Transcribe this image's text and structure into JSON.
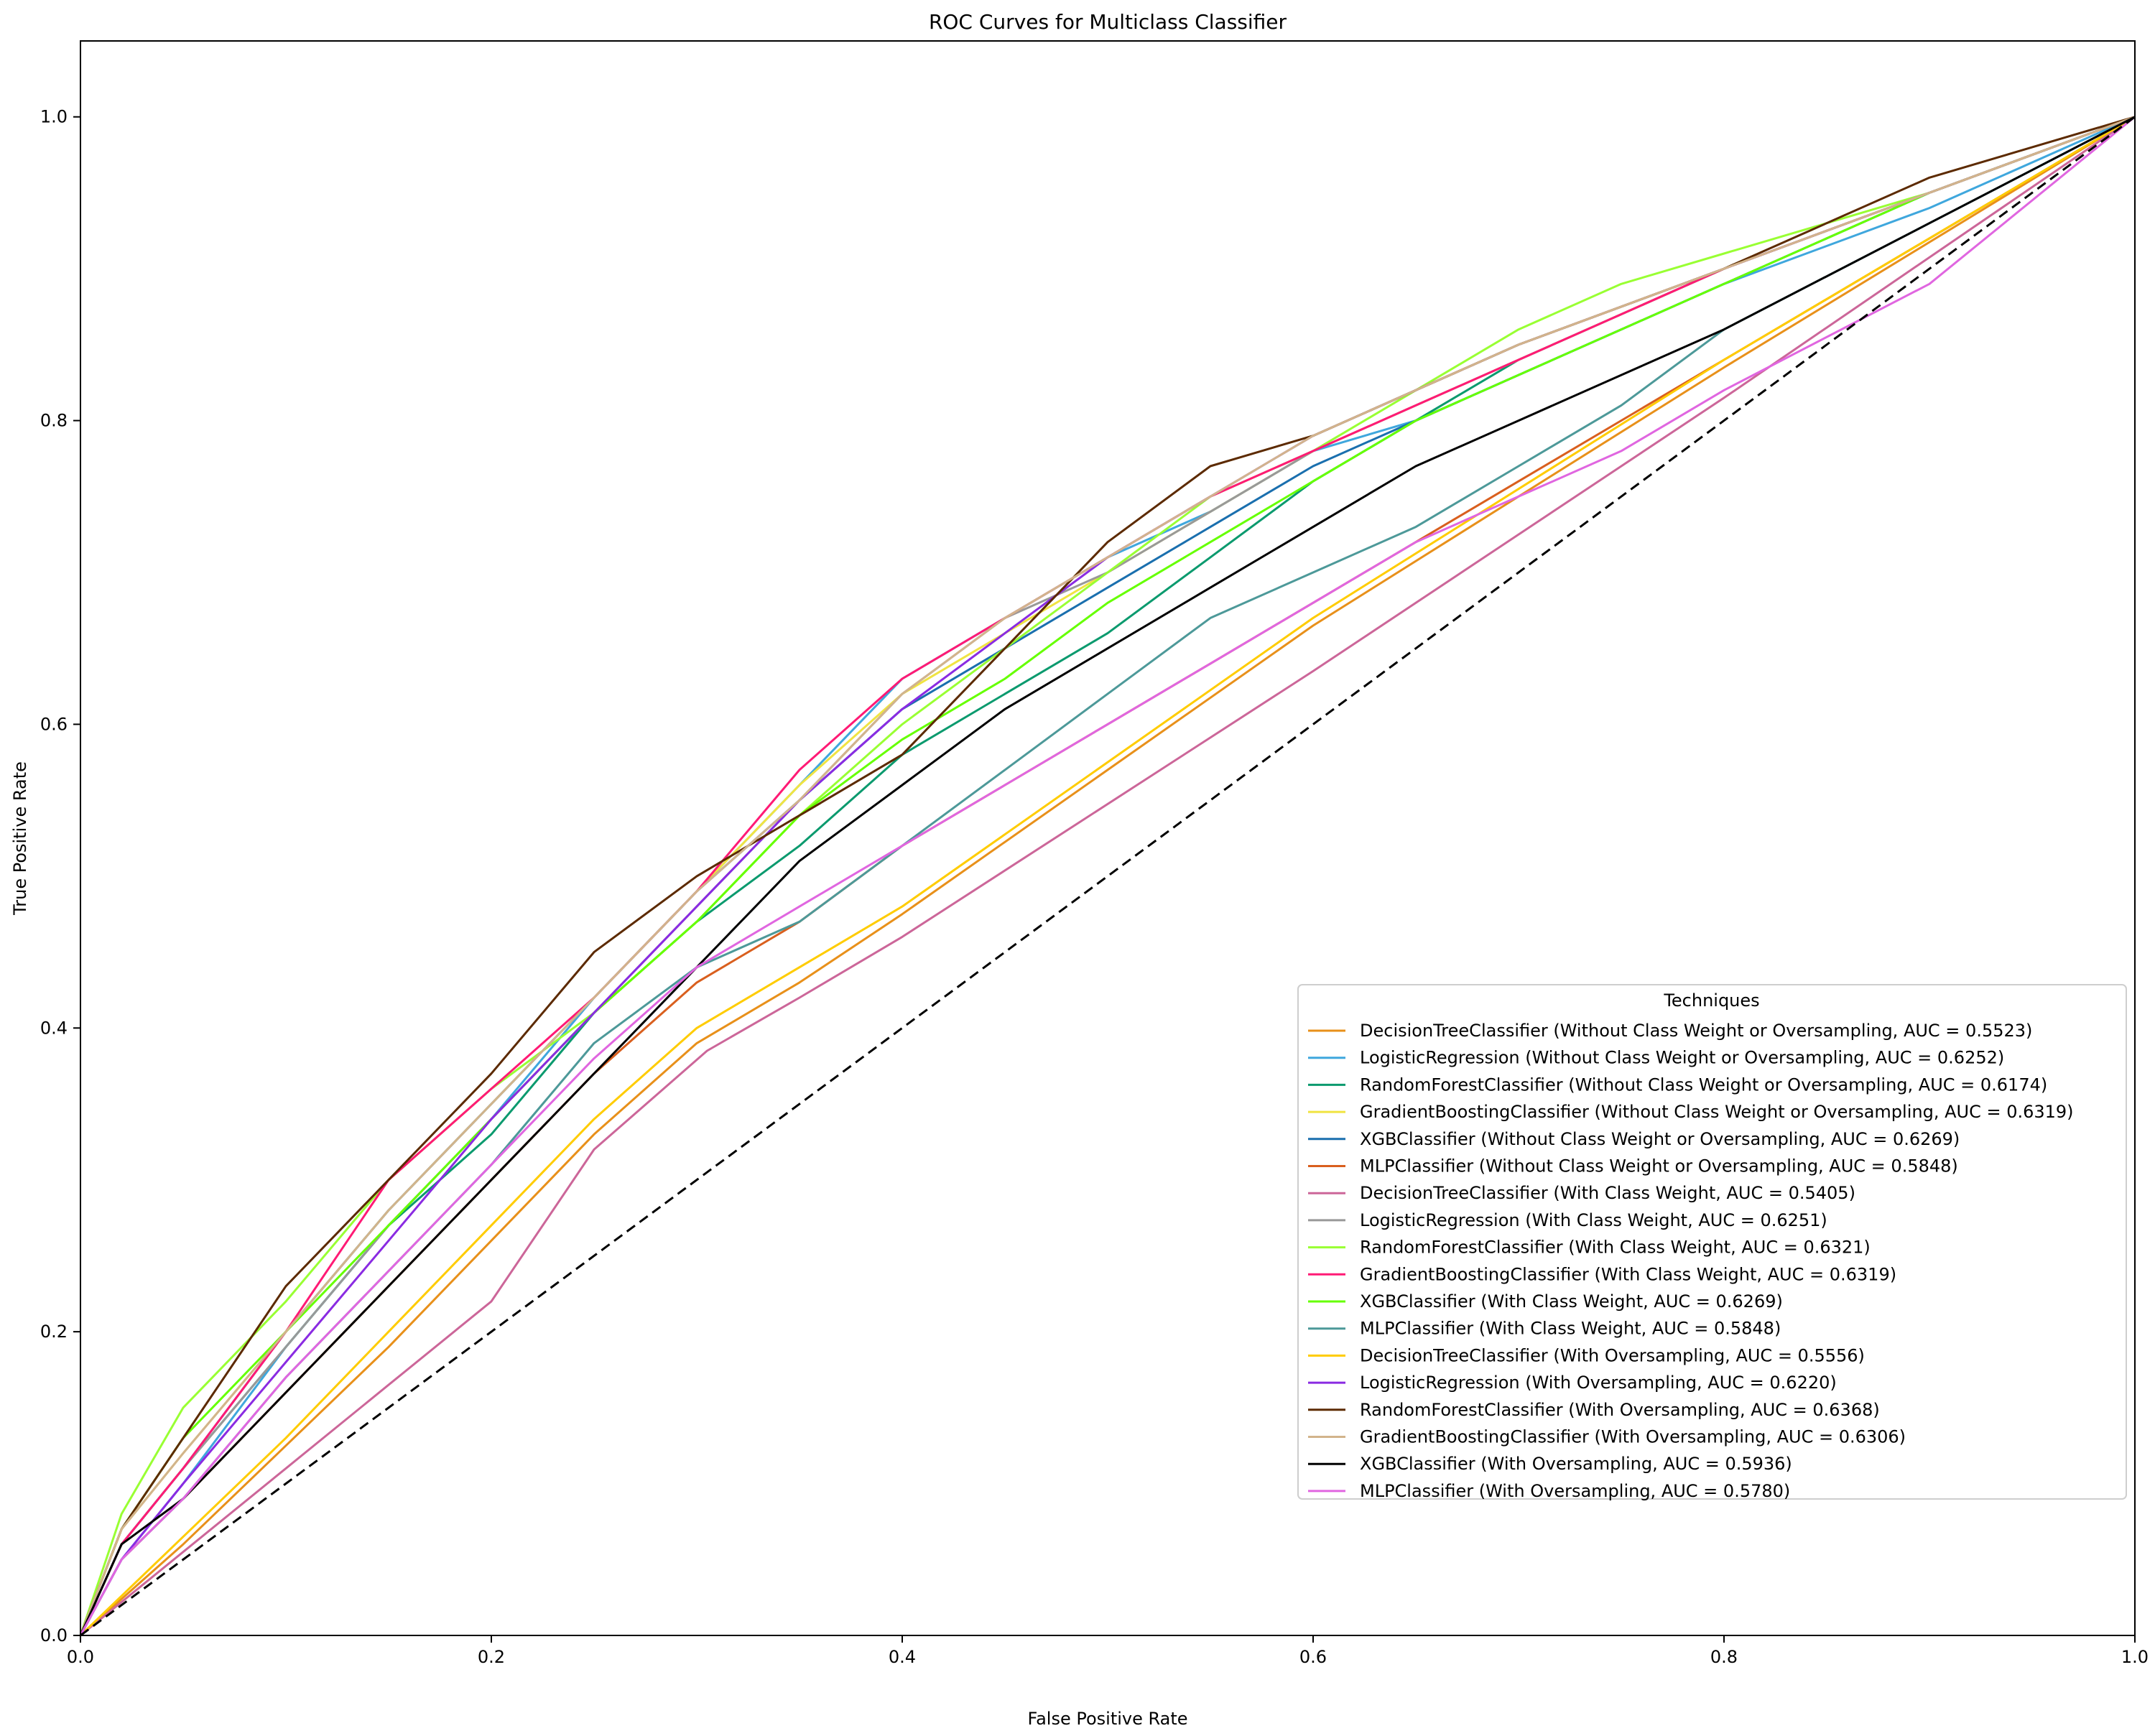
{
  "chart_data": {
    "type": "line",
    "title": "ROC Curves for Multiclass Classifier",
    "xlabel": "False Positive Rate",
    "ylabel": "True Positive Rate",
    "xlim": [
      0.0,
      1.0
    ],
    "ylim": [
      0.0,
      1.05
    ],
    "xticks": [
      "0.0",
      "0.2",
      "0.4",
      "0.6",
      "0.8",
      "1.0"
    ],
    "yticks": [
      "0.0",
      "0.2",
      "0.4",
      "0.6",
      "0.8",
      "1.0"
    ],
    "grid": false,
    "legend": {
      "title": "Techniques",
      "placement": "lower right"
    },
    "series": [
      {
        "name": "DecisionTreeClassifier (Without Class Weight or Oversampling, AUC = 0.5523)",
        "color": "#e8901a",
        "style": "solid",
        "x": [
          0,
          0.05,
          0.1,
          0.15,
          0.2,
          0.25,
          0.3,
          0.35,
          0.4,
          0.6,
          0.8,
          1.0
        ],
        "y": [
          0,
          0.06,
          0.125,
          0.19,
          0.26,
          0.33,
          0.39,
          0.43,
          0.475,
          0.665,
          0.835,
          1.0
        ]
      },
      {
        "name": "LogisticRegression (Without Class Weight or Oversampling, AUC = 0.6252)",
        "color": "#3fa7dd",
        "style": "solid",
        "x": [
          0,
          0.02,
          0.05,
          0.1,
          0.15,
          0.2,
          0.25,
          0.3,
          0.35,
          0.4,
          0.45,
          0.5,
          0.55,
          0.6,
          0.65,
          0.7,
          0.75,
          0.8,
          0.9,
          1.0
        ],
        "y": [
          0,
          0.05,
          0.1,
          0.19,
          0.27,
          0.34,
          0.42,
          0.49,
          0.56,
          0.63,
          0.67,
          0.71,
          0.74,
          0.78,
          0.8,
          0.83,
          0.86,
          0.89,
          0.94,
          1.0
        ]
      },
      {
        "name": "RandomForestClassifier (Without Class Weight or Oversampling, AUC = 0.6174)",
        "color": "#0b9a6e",
        "style": "solid",
        "x": [
          0,
          0.02,
          0.05,
          0.1,
          0.15,
          0.2,
          0.25,
          0.3,
          0.35,
          0.4,
          0.45,
          0.5,
          0.55,
          0.6,
          0.65,
          0.7,
          0.8,
          0.9,
          1.0
        ],
        "y": [
          0,
          0.06,
          0.11,
          0.19,
          0.27,
          0.33,
          0.41,
          0.47,
          0.52,
          0.58,
          0.62,
          0.66,
          0.71,
          0.76,
          0.8,
          0.84,
          0.9,
          0.95,
          1.0
        ]
      },
      {
        "name": "GradientBoostingClassifier (Without Class Weight or Oversampling, AUC = 0.6319)",
        "color": "#f0e442",
        "style": "solid",
        "x": [
          0,
          0.02,
          0.05,
          0.1,
          0.15,
          0.2,
          0.25,
          0.3,
          0.35,
          0.4,
          0.45,
          0.5,
          0.55,
          0.6,
          0.65,
          0.7,
          0.8,
          0.9,
          1.0
        ],
        "y": [
          0,
          0.07,
          0.12,
          0.2,
          0.28,
          0.35,
          0.42,
          0.49,
          0.56,
          0.62,
          0.66,
          0.7,
          0.74,
          0.78,
          0.81,
          0.84,
          0.9,
          0.95,
          1.0
        ]
      },
      {
        "name": "XGBClassifier (Without Class Weight or Oversampling, AUC = 0.6269)",
        "color": "#1a6fae",
        "style": "solid",
        "x": [
          0,
          0.02,
          0.05,
          0.1,
          0.15,
          0.2,
          0.25,
          0.3,
          0.35,
          0.4,
          0.45,
          0.5,
          0.55,
          0.6,
          0.65,
          0.7,
          0.8,
          0.9,
          1.0
        ],
        "y": [
          0,
          0.06,
          0.11,
          0.2,
          0.28,
          0.35,
          0.42,
          0.49,
          0.55,
          0.61,
          0.65,
          0.69,
          0.73,
          0.77,
          0.8,
          0.83,
          0.89,
          0.95,
          1.0
        ]
      },
      {
        "name": "MLPClassifier (Without Class Weight or Oversampling, AUC = 0.5848)",
        "color": "#d95f1e",
        "style": "solid",
        "x": [
          0,
          0.02,
          0.05,
          0.1,
          0.15,
          0.2,
          0.25,
          0.3,
          0.35,
          0.4,
          0.45,
          0.5,
          0.55,
          0.6,
          0.65,
          0.7,
          0.8,
          0.9,
          1.0
        ],
        "y": [
          0,
          0.05,
          0.09,
          0.16,
          0.23,
          0.3,
          0.37,
          0.43,
          0.47,
          0.52,
          0.56,
          0.6,
          0.64,
          0.68,
          0.72,
          0.76,
          0.84,
          0.92,
          1.0
        ]
      },
      {
        "name": "DecisionTreeClassifier (With Class Weight, AUC = 0.5405)",
        "color": "#cc6699",
        "style": "solid",
        "x": [
          0,
          0.05,
          0.1,
          0.15,
          0.2,
          0.25,
          0.305,
          0.35,
          0.4,
          0.6,
          0.8,
          1.0
        ],
        "y": [
          0,
          0.055,
          0.11,
          0.165,
          0.22,
          0.32,
          0.385,
          0.42,
          0.46,
          0.635,
          0.815,
          1.0
        ]
      },
      {
        "name": "LogisticRegression (With Class Weight, AUC = 0.6251)",
        "color": "#999999",
        "style": "solid",
        "x": [
          0,
          0.02,
          0.05,
          0.1,
          0.15,
          0.2,
          0.25,
          0.3,
          0.35,
          0.4,
          0.45,
          0.5,
          0.55,
          0.6,
          0.65,
          0.7,
          0.8,
          0.9,
          1.0
        ],
        "y": [
          0,
          0.06,
          0.11,
          0.19,
          0.27,
          0.34,
          0.41,
          0.48,
          0.55,
          0.62,
          0.67,
          0.7,
          0.74,
          0.78,
          0.81,
          0.84,
          0.9,
          0.95,
          1.0
        ]
      },
      {
        "name": "RandomForestClassifier (With Class Weight, AUC = 0.6321)",
        "color": "#99ff33",
        "style": "solid",
        "x": [
          0,
          0.02,
          0.05,
          0.1,
          0.15,
          0.2,
          0.25,
          0.3,
          0.35,
          0.4,
          0.45,
          0.5,
          0.55,
          0.6,
          0.65,
          0.7,
          0.75,
          0.8,
          0.9,
          1.0
        ],
        "y": [
          0,
          0.08,
          0.15,
          0.22,
          0.3,
          0.36,
          0.41,
          0.47,
          0.54,
          0.6,
          0.65,
          0.7,
          0.75,
          0.78,
          0.82,
          0.86,
          0.89,
          0.91,
          0.95,
          1.0
        ]
      },
      {
        "name": "GradientBoostingClassifier (With Class Weight, AUC = 0.6319)",
        "color": "#ff1a75",
        "style": "solid",
        "x": [
          0,
          0.02,
          0.05,
          0.1,
          0.15,
          0.2,
          0.25,
          0.3,
          0.35,
          0.4,
          0.45,
          0.5,
          0.55,
          0.6,
          0.65,
          0.7,
          0.8,
          0.9,
          1.0
        ],
        "y": [
          0,
          0.06,
          0.11,
          0.2,
          0.3,
          0.36,
          0.42,
          0.49,
          0.57,
          0.63,
          0.67,
          0.71,
          0.75,
          0.78,
          0.81,
          0.84,
          0.9,
          0.95,
          1.0
        ]
      },
      {
        "name": "XGBClassifier (With Class Weight, AUC = 0.6269)",
        "color": "#66ff00",
        "style": "solid",
        "x": [
          0,
          0.02,
          0.05,
          0.1,
          0.15,
          0.2,
          0.25,
          0.3,
          0.35,
          0.4,
          0.45,
          0.5,
          0.55,
          0.6,
          0.65,
          0.7,
          0.8,
          0.9,
          1.0
        ],
        "y": [
          0,
          0.07,
          0.13,
          0.2,
          0.27,
          0.34,
          0.41,
          0.47,
          0.54,
          0.59,
          0.63,
          0.68,
          0.72,
          0.76,
          0.8,
          0.83,
          0.89,
          0.95,
          1.0
        ]
      },
      {
        "name": "MLPClassifier (With Class Weight, AUC = 0.5848)",
        "color": "#4d9999",
        "style": "solid",
        "x": [
          0,
          0.02,
          0.05,
          0.1,
          0.15,
          0.2,
          0.25,
          0.3,
          0.35,
          0.4,
          0.45,
          0.5,
          0.55,
          0.6,
          0.65,
          0.7,
          0.75,
          0.8,
          0.9,
          1.0
        ],
        "y": [
          0,
          0.05,
          0.09,
          0.17,
          0.24,
          0.31,
          0.39,
          0.44,
          0.47,
          0.52,
          0.57,
          0.62,
          0.67,
          0.7,
          0.73,
          0.77,
          0.81,
          0.86,
          0.93,
          1.0
        ]
      },
      {
        "name": "DecisionTreeClassifier (With Oversampling, AUC = 0.5556)",
        "color": "#ffcc00",
        "style": "solid",
        "x": [
          0,
          0.05,
          0.1,
          0.15,
          0.2,
          0.25,
          0.3,
          0.35,
          0.4,
          0.6,
          0.8,
          1.0
        ],
        "y": [
          0,
          0.065,
          0.13,
          0.2,
          0.27,
          0.34,
          0.4,
          0.44,
          0.48,
          0.67,
          0.84,
          1.0
        ]
      },
      {
        "name": "LogisticRegression (With Oversampling, AUC = 0.6220)",
        "color": "#8a2be2",
        "style": "solid",
        "x": [
          0,
          0.02,
          0.05,
          0.1,
          0.15,
          0.2,
          0.25,
          0.3,
          0.35,
          0.4,
          0.45,
          0.5,
          0.55,
          0.6,
          0.65,
          0.7,
          0.8,
          0.9,
          1.0
        ],
        "y": [
          0,
          0.05,
          0.1,
          0.18,
          0.26,
          0.34,
          0.41,
          0.48,
          0.55,
          0.61,
          0.66,
          0.71,
          0.75,
          0.79,
          0.82,
          0.85,
          0.9,
          0.95,
          1.0
        ]
      },
      {
        "name": "RandomForestClassifier (With Oversampling, AUC = 0.6368)",
        "color": "#5c2a00",
        "style": "solid",
        "x": [
          0,
          0.02,
          0.05,
          0.1,
          0.15,
          0.2,
          0.25,
          0.3,
          0.35,
          0.4,
          0.45,
          0.5,
          0.55,
          0.6,
          0.65,
          0.7,
          0.8,
          0.9,
          1.0
        ],
        "y": [
          0,
          0.07,
          0.13,
          0.23,
          0.3,
          0.37,
          0.45,
          0.5,
          0.54,
          0.58,
          0.65,
          0.72,
          0.77,
          0.79,
          0.82,
          0.85,
          0.9,
          0.96,
          1.0
        ]
      },
      {
        "name": "GradientBoostingClassifier (With Oversampling, AUC = 0.6306)",
        "color": "#d2b48c",
        "style": "solid",
        "x": [
          0,
          0.02,
          0.05,
          0.1,
          0.15,
          0.2,
          0.25,
          0.3,
          0.35,
          0.4,
          0.45,
          0.5,
          0.55,
          0.6,
          0.65,
          0.7,
          0.8,
          0.9,
          1.0
        ],
        "y": [
          0,
          0.07,
          0.12,
          0.2,
          0.28,
          0.35,
          0.42,
          0.49,
          0.55,
          0.62,
          0.67,
          0.71,
          0.75,
          0.79,
          0.82,
          0.85,
          0.9,
          0.95,
          1.0
        ]
      },
      {
        "name": "XGBClassifier (With Oversampling, AUC = 0.5936)",
        "color": "#000000",
        "style": "solid",
        "x": [
          0,
          0.02,
          0.05,
          0.1,
          0.15,
          0.2,
          0.25,
          0.3,
          0.35,
          0.4,
          0.45,
          0.5,
          0.55,
          0.6,
          0.65,
          0.7,
          0.8,
          0.9,
          1.0
        ],
        "y": [
          0,
          0.06,
          0.09,
          0.16,
          0.23,
          0.3,
          0.37,
          0.44,
          0.51,
          0.56,
          0.61,
          0.65,
          0.69,
          0.73,
          0.77,
          0.8,
          0.86,
          0.93,
          1.0
        ]
      },
      {
        "name": "MLPClassifier (With Oversampling, AUC = 0.5780)",
        "color": "#e066e0",
        "style": "solid",
        "x": [
          0,
          0.02,
          0.05,
          0.1,
          0.15,
          0.2,
          0.25,
          0.3,
          0.35,
          0.4,
          0.45,
          0.5,
          0.55,
          0.6,
          0.65,
          0.7,
          0.75,
          0.8,
          0.9,
          1.0
        ],
        "y": [
          0,
          0.05,
          0.09,
          0.17,
          0.24,
          0.31,
          0.38,
          0.44,
          0.48,
          0.52,
          0.56,
          0.6,
          0.64,
          0.68,
          0.72,
          0.75,
          0.78,
          0.82,
          0.89,
          1.0
        ]
      },
      {
        "name": "",
        "color": "#000000",
        "style": "dashed",
        "x": [
          0,
          1
        ],
        "y": [
          0,
          1
        ]
      }
    ]
  }
}
